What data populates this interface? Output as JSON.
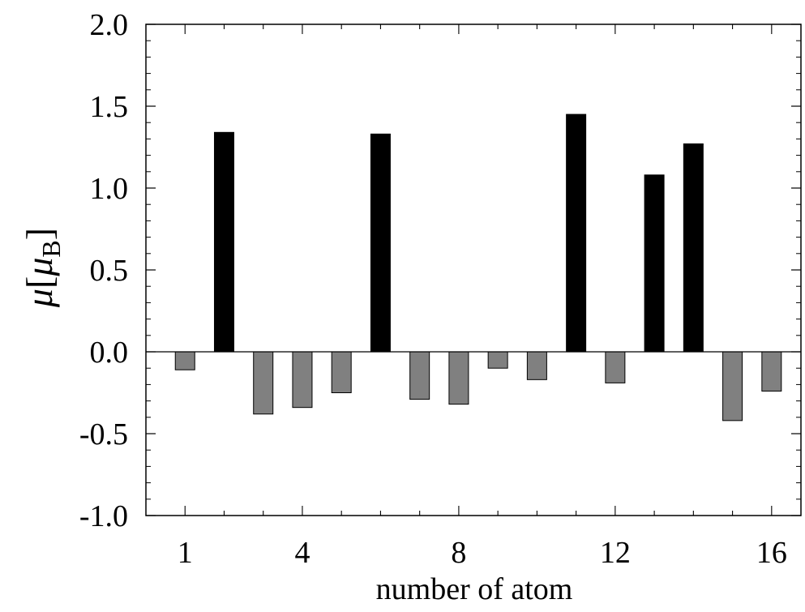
{
  "chart_data": {
    "type": "bar",
    "title": "",
    "xlabel": "number of atom",
    "ylabel": {
      "symbol": "μ",
      "unit_symbol": "μ",
      "unit_subscript": "B"
    },
    "x": [
      1,
      2,
      3,
      4,
      5,
      6,
      7,
      8,
      9,
      10,
      11,
      12,
      13,
      14,
      15,
      16
    ],
    "values": [
      -0.11,
      1.34,
      -0.38,
      -0.34,
      -0.25,
      1.33,
      -0.29,
      -0.32,
      -0.1,
      -0.17,
      1.45,
      -0.19,
      1.08,
      1.27,
      -0.42,
      -0.24
    ],
    "xticks": [
      1,
      4,
      8,
      12,
      16
    ],
    "xtick_labels": [
      "1",
      "4",
      "8",
      "12",
      "16"
    ],
    "yticks": [
      -1.0,
      -0.5,
      0.0,
      0.5,
      1.0,
      1.5,
      2.0
    ],
    "ytick_labels": [
      "-1.0",
      "-0.5",
      "0.0",
      "0.5",
      "1.0",
      "1.5",
      "2.0"
    ],
    "xlim": [
      0,
      16.75
    ],
    "ylim": [
      -1.0,
      2.0
    ],
    "grid": false,
    "colors": {
      "positive": "#000000",
      "negative": "#808080",
      "axis": "#000000"
    }
  }
}
